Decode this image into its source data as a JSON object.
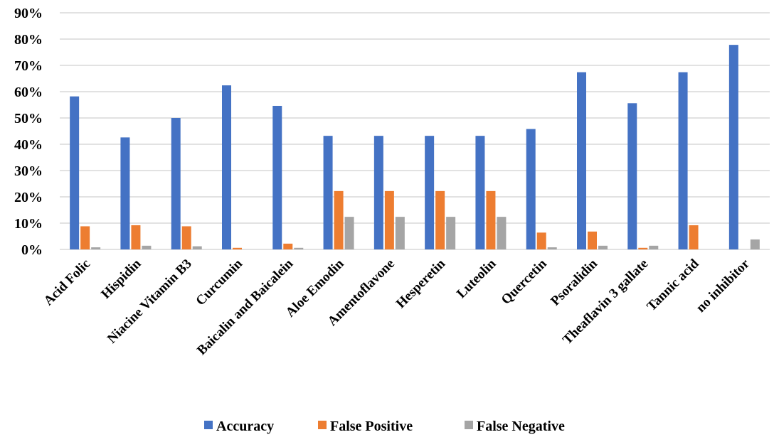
{
  "chart_data": {
    "type": "bar",
    "title": "",
    "xlabel": "",
    "ylabel": "",
    "ylim": [
      0,
      90
    ],
    "y_ticks": [
      "0%",
      "10%",
      "20%",
      "30%",
      "40%",
      "50%",
      "60%",
      "70%",
      "80%",
      "90%"
    ],
    "y_tick_values": [
      0,
      10,
      20,
      30,
      40,
      50,
      60,
      70,
      80,
      90
    ],
    "grid": true,
    "legend_position": "bottom",
    "categories": [
      "Acid Folic",
      "Hispidin",
      "Niacine Vitamin B3",
      "Curcumin",
      "Baicalin and Baicalein",
      "Aloe Emodin",
      "Amentoflavone",
      "Hesperetin",
      "Luteolin",
      "Quercetin",
      "Psoralidin",
      "Theaflavin 3 gallate",
      "Tannic acid",
      "no inhibitor"
    ],
    "series": [
      {
        "name": "Accuracy",
        "color": "#4472c4",
        "values": [
          58.2,
          42.6,
          50.0,
          62.4,
          54.6,
          43.2,
          43.2,
          43.2,
          43.2,
          45.8,
          67.4,
          55.6,
          67.4,
          77.8
        ]
      },
      {
        "name": "False Positive",
        "color": "#ed7d31",
        "values": [
          8.8,
          9.2,
          8.8,
          0.6,
          2.2,
          22.2,
          22.2,
          22.2,
          22.2,
          6.4,
          6.8,
          0.6,
          9.2,
          0.0
        ]
      },
      {
        "name": "False Negative",
        "color": "#a5a5a5",
        "values": [
          0.8,
          1.4,
          1.2,
          0.0,
          0.6,
          12.4,
          12.4,
          12.4,
          12.4,
          0.8,
          1.4,
          1.4,
          0.0,
          3.8
        ]
      }
    ]
  }
}
